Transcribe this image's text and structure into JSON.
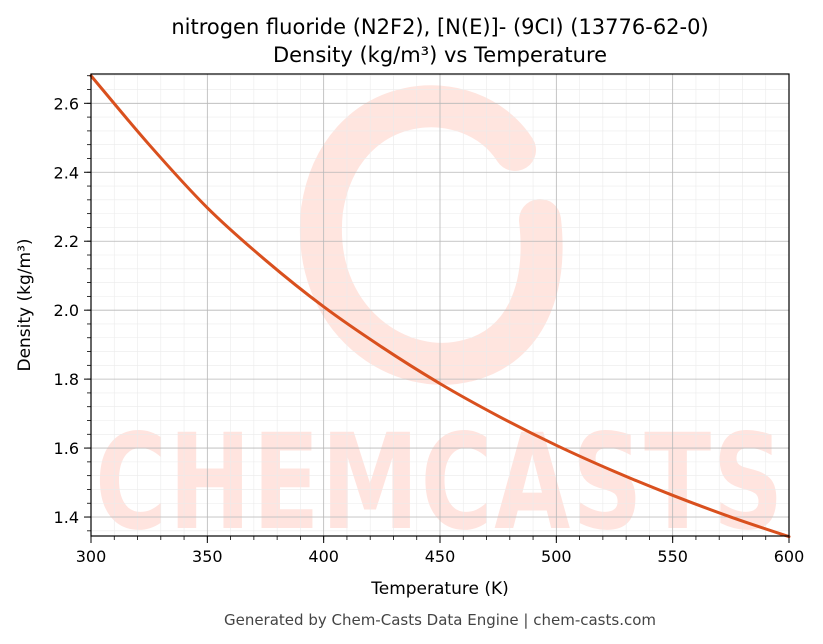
{
  "chart_data": {
    "type": "line",
    "title": "nitrogen fluoride (N2F2), [N(E)]- (9CI) (13776-62-0)",
    "subtitle": "Density (kg/m³) vs Temperature",
    "xlabel": "Temperature (K)",
    "ylabel": "Density (kg/m³)",
    "xlim": [
      300,
      600
    ],
    "ylim": [
      1.345,
      2.685
    ],
    "xticks": [
      300,
      350,
      400,
      450,
      500,
      550,
      600
    ],
    "xtick_labels": [
      "300",
      "350",
      "400",
      "450",
      "500",
      "550",
      "600"
    ],
    "yticks": [
      1.4,
      1.6,
      1.8,
      2.0,
      2.2,
      2.4,
      2.6
    ],
    "ytick_labels": [
      "1.4",
      "1.6",
      "1.8",
      "2.0",
      "2.2",
      "2.4",
      "2.6"
    ],
    "grid": true,
    "minor_grid": true,
    "legend": "none",
    "series": [
      {
        "color": "#d9501e",
        "x": [
          300,
          325,
          350,
          375,
          400,
          425,
          450,
          475,
          500,
          525,
          550,
          575,
          600
        ],
        "y": [
          2.68,
          2.48,
          2.297,
          2.145,
          2.01,
          1.893,
          1.787,
          1.693,
          1.608,
          1.532,
          1.463,
          1.4,
          1.343
        ]
      }
    ]
  },
  "watermark": {
    "text": "CHEMCASTS",
    "color": "#ffe2dc"
  },
  "footer": {
    "text": "Generated by Chem-Casts Data Engine | chem-casts.com"
  }
}
